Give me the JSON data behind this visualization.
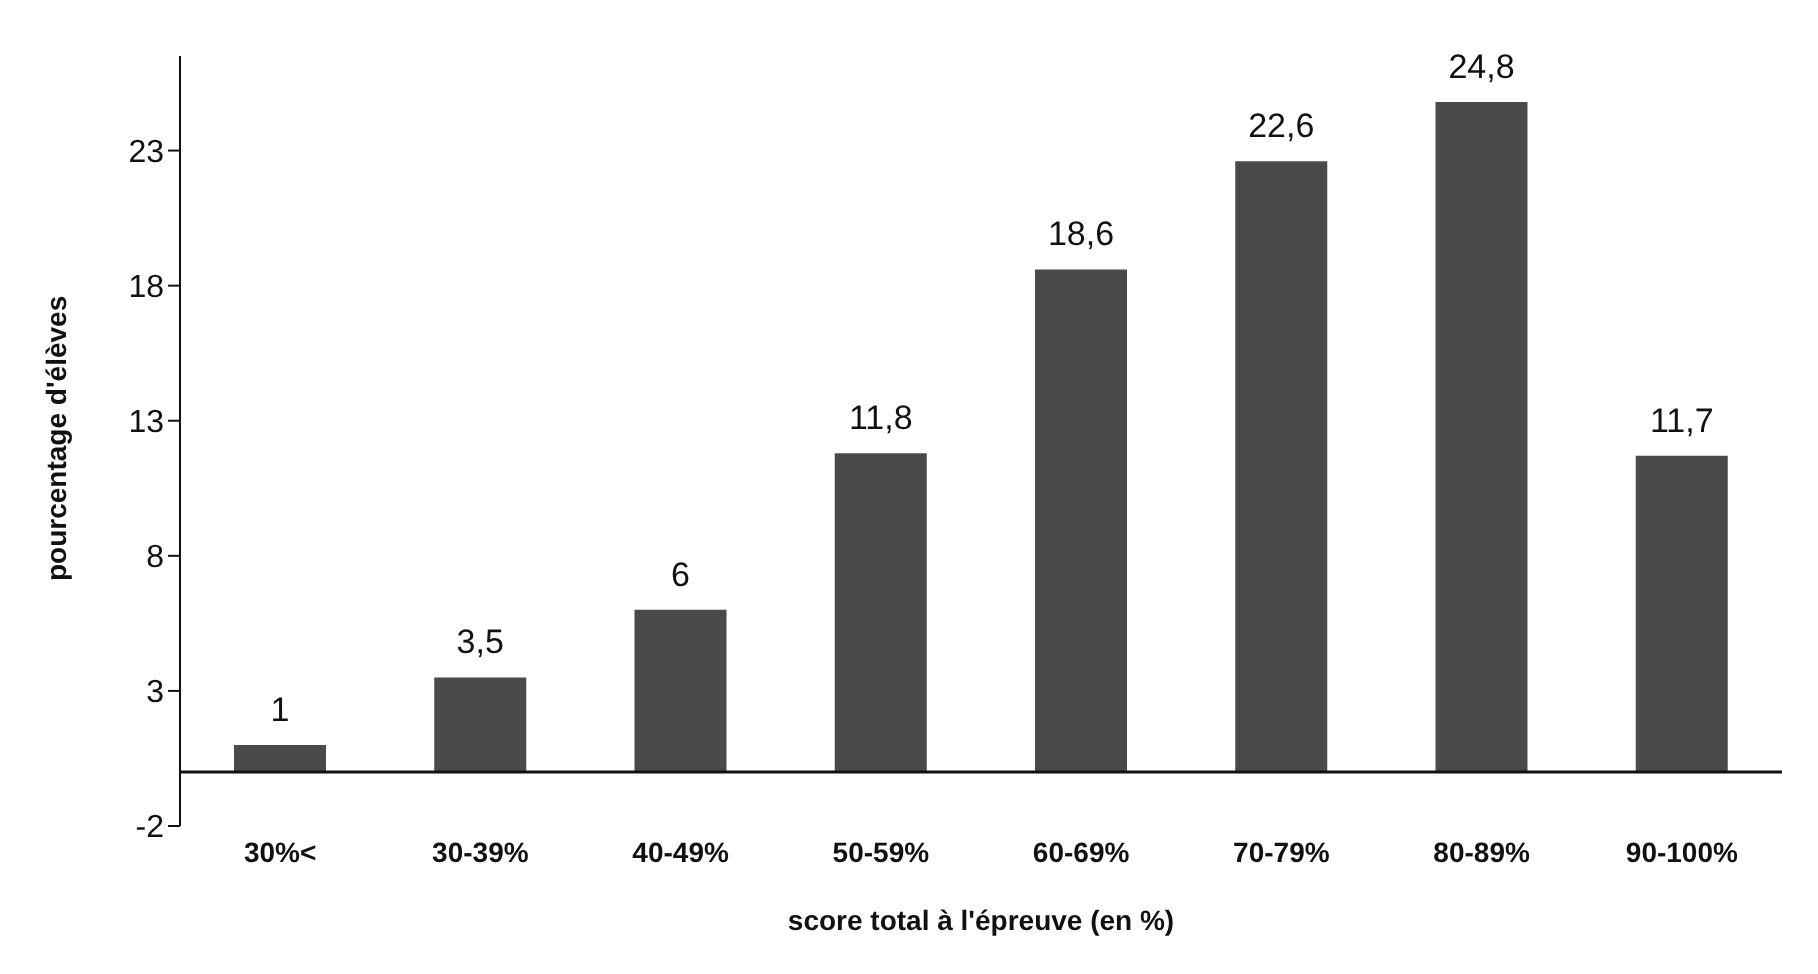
{
  "chart_data": {
    "type": "bar",
    "xlabel": "score total à l'épreuve (en %)",
    "ylabel": "pourcentage d'élèves",
    "categories": [
      "30%<",
      "30-39%",
      "40-49%",
      "50-59%",
      "60-69%",
      "70-79%",
      "80-89%",
      "90-100%"
    ],
    "values": [
      1,
      3.5,
      6,
      11.8,
      18.6,
      22.6,
      24.8,
      11.7
    ],
    "value_labels": [
      "1",
      "3,5",
      "6",
      "11,8",
      "18,6",
      "22,6",
      "24,8",
      "11,7"
    ],
    "color": "#4a4a4a",
    "ylim": [
      -2,
      26.5
    ],
    "yticks": [
      -2,
      3,
      8,
      13,
      18,
      23
    ],
    "grid": false,
    "legend": false
  }
}
